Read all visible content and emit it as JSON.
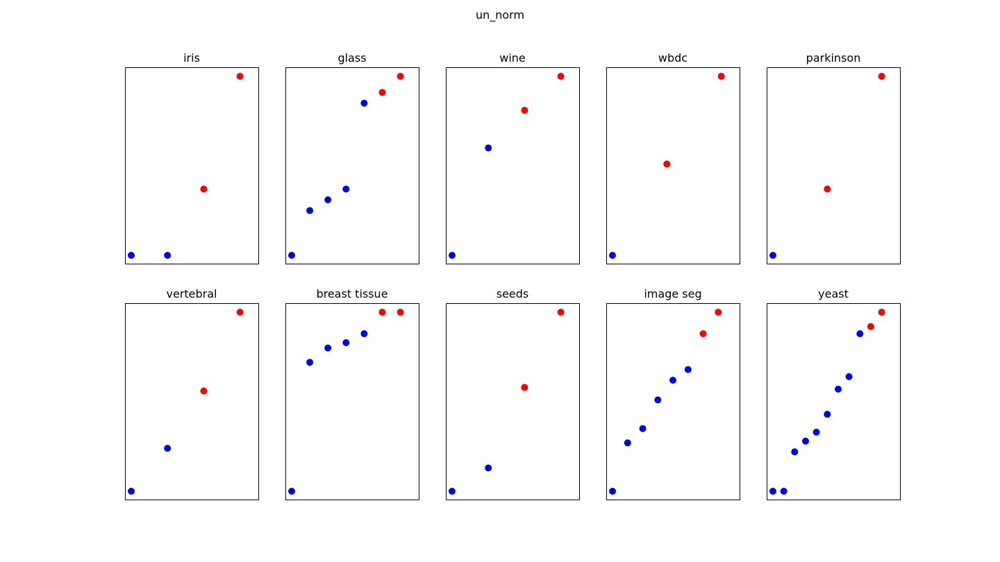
{
  "figure": {
    "title": "un_norm"
  },
  "colors": {
    "blue": "#0000ff",
    "red": "#ff0000",
    "frame": "#000000"
  },
  "chart_data": [
    {
      "type": "scatter",
      "title": "iris",
      "xlim": [
        0,
        1
      ],
      "ylim": [
        0,
        1
      ],
      "series": [
        {
          "color": "blue",
          "points": [
            [
              0.0,
              0.0
            ],
            [
              0.3,
              0.0
            ]
          ]
        },
        {
          "color": "red",
          "points": [
            [
              0.6,
              0.37
            ],
            [
              0.9,
              1.0
            ]
          ]
        }
      ]
    },
    {
      "type": "scatter",
      "title": "glass",
      "xlim": [
        0,
        1
      ],
      "ylim": [
        0,
        1
      ],
      "series": [
        {
          "color": "blue",
          "points": [
            [
              0.0,
              0.0
            ],
            [
              0.15,
              0.25
            ],
            [
              0.3,
              0.31
            ],
            [
              0.45,
              0.37
            ],
            [
              0.6,
              0.85
            ]
          ]
        },
        {
          "color": "red",
          "points": [
            [
              0.75,
              0.91
            ],
            [
              0.9,
              1.0
            ]
          ]
        }
      ]
    },
    {
      "type": "scatter",
      "title": "wine",
      "xlim": [
        0,
        1
      ],
      "ylim": [
        0,
        1
      ],
      "series": [
        {
          "color": "blue",
          "points": [
            [
              0.0,
              0.0
            ],
            [
              0.3,
              0.6
            ]
          ]
        },
        {
          "color": "red",
          "points": [
            [
              0.6,
              0.81
            ],
            [
              0.9,
              1.0
            ]
          ]
        }
      ]
    },
    {
      "type": "scatter",
      "title": "wbdc",
      "xlim": [
        0,
        1
      ],
      "ylim": [
        0,
        1
      ],
      "series": [
        {
          "color": "blue",
          "points": [
            [
              0.0,
              0.0
            ]
          ]
        },
        {
          "color": "red",
          "points": [
            [
              0.45,
              0.51
            ],
            [
              0.9,
              1.0
            ]
          ]
        }
      ]
    },
    {
      "type": "scatter",
      "title": "parkinson",
      "xlim": [
        0,
        1
      ],
      "ylim": [
        0,
        1
      ],
      "series": [
        {
          "color": "blue",
          "points": [
            [
              0.0,
              0.0
            ]
          ]
        },
        {
          "color": "red",
          "points": [
            [
              0.45,
              0.37
            ],
            [
              0.9,
              1.0
            ]
          ]
        }
      ]
    },
    {
      "type": "scatter",
      "title": "vertebral",
      "xlim": [
        0,
        1
      ],
      "ylim": [
        0,
        1
      ],
      "series": [
        {
          "color": "blue",
          "points": [
            [
              0.0,
              0.0
            ],
            [
              0.3,
              0.24
            ]
          ]
        },
        {
          "color": "red",
          "points": [
            [
              0.6,
              0.56
            ],
            [
              0.9,
              1.0
            ]
          ]
        }
      ]
    },
    {
      "type": "scatter",
      "title": "breast tissue",
      "xlim": [
        0,
        1
      ],
      "ylim": [
        0,
        1
      ],
      "series": [
        {
          "color": "blue",
          "points": [
            [
              0.0,
              0.0
            ],
            [
              0.15,
              0.72
            ],
            [
              0.3,
              0.8
            ],
            [
              0.45,
              0.83
            ],
            [
              0.6,
              0.88
            ]
          ]
        },
        {
          "color": "red",
          "points": [
            [
              0.75,
              1.0
            ],
            [
              0.9,
              1.0
            ]
          ]
        }
      ]
    },
    {
      "type": "scatter",
      "title": "seeds",
      "xlim": [
        0,
        1
      ],
      "ylim": [
        0,
        1
      ],
      "series": [
        {
          "color": "blue",
          "points": [
            [
              0.0,
              0.0
            ],
            [
              0.3,
              0.13
            ]
          ]
        },
        {
          "color": "red",
          "points": [
            [
              0.6,
              0.58
            ],
            [
              0.9,
              1.0
            ]
          ]
        }
      ]
    },
    {
      "type": "scatter",
      "title": "image seg",
      "xlim": [
        0,
        1
      ],
      "ylim": [
        0,
        1
      ],
      "series": [
        {
          "color": "blue",
          "points": [
            [
              0.0,
              0.0
            ],
            [
              0.125,
              0.27
            ],
            [
              0.25,
              0.35
            ],
            [
              0.375,
              0.51
            ],
            [
              0.5,
              0.62
            ],
            [
              0.625,
              0.68
            ]
          ]
        },
        {
          "color": "red",
          "points": [
            [
              0.75,
              0.88
            ],
            [
              0.875,
              1.0
            ]
          ]
        }
      ]
    },
    {
      "type": "scatter",
      "title": "yeast",
      "xlim": [
        0,
        1
      ],
      "ylim": [
        0,
        1
      ],
      "series": [
        {
          "color": "blue",
          "points": [
            [
              0.0,
              0.0
            ],
            [
              0.09,
              0.0
            ],
            [
              0.18,
              0.22
            ],
            [
              0.27,
              0.28
            ],
            [
              0.36,
              0.33
            ],
            [
              0.45,
              0.43
            ],
            [
              0.54,
              0.57
            ],
            [
              0.63,
              0.64
            ],
            [
              0.72,
              0.88
            ]
          ]
        },
        {
          "color": "red",
          "points": [
            [
              0.81,
              0.92
            ],
            [
              0.9,
              1.0
            ]
          ]
        }
      ]
    }
  ]
}
